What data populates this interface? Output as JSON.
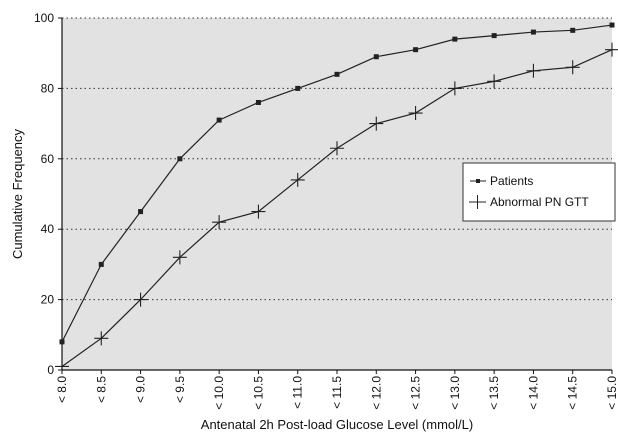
{
  "chart_data": {
    "type": "line",
    "title": "",
    "xlabel": "Antenatal 2h Post-load Glucose Level (mmol/L)",
    "ylabel": "Cumulative Frequency",
    "categories": [
      "< 8.0",
      "< 8.5",
      "< 9.0",
      "< 9.5",
      "< 10.0",
      "< 10.5",
      "< 11.0",
      "< 11.5",
      "< 12.0",
      "< 12.5",
      "< 13.0",
      "< 13.5",
      "< 14.0",
      "< 14.5",
      "< 15.0"
    ],
    "yticks": [
      "0",
      "20",
      "40",
      "60",
      "80",
      "100"
    ],
    "ylim": [
      0,
      100
    ],
    "grid": "horizontal dotted",
    "legend_position": "right",
    "series": [
      {
        "name": "Patients",
        "marker": "square",
        "values": [
          8,
          30,
          45,
          60,
          71,
          76,
          80,
          84,
          89,
          91,
          94,
          95,
          96,
          96.5,
          98
        ]
      },
      {
        "name": "Abnormal PN GTT",
        "marker": "cross",
        "values": [
          1,
          9,
          20,
          32,
          42,
          45,
          54,
          63,
          70,
          73,
          80,
          82,
          85,
          86,
          91
        ]
      }
    ]
  }
}
